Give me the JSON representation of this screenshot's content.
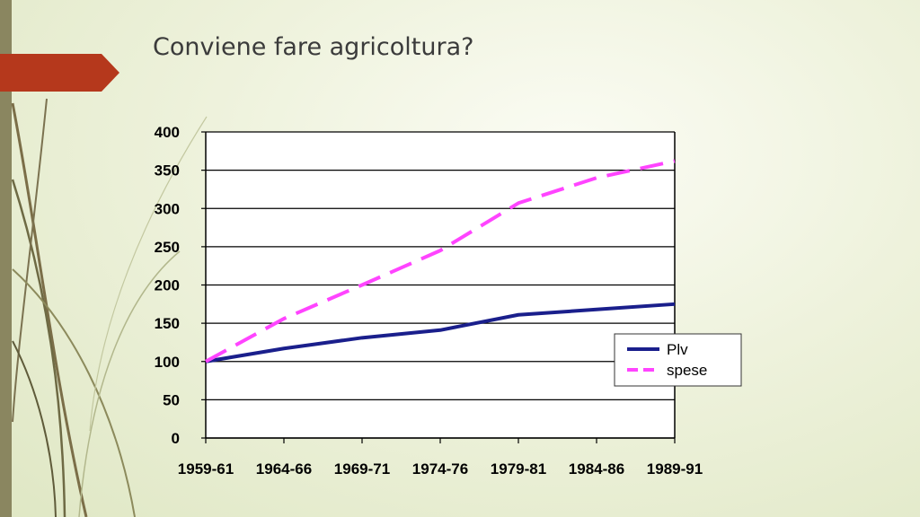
{
  "slide": {
    "title": "Conviene fare agricoltura?"
  },
  "colors": {
    "accent_arrow": "#b5381c",
    "side_bar": "#8a8660",
    "series_plv": "#1a1f8c",
    "series_spese": "#ff44ff"
  },
  "chart_data": {
    "type": "line",
    "x": [
      "1959-61",
      "1964-66",
      "1969-71",
      "1974-76",
      "1979-81",
      "1984-86",
      "1989-91"
    ],
    "series": [
      {
        "name": "Plv",
        "values": [
          100,
          117,
          131,
          141,
          161,
          168,
          175
        ],
        "style": "solid"
      },
      {
        "name": "spese",
        "values": [
          100,
          156,
          200,
          245,
          307,
          340,
          362
        ],
        "style": "dashed"
      }
    ],
    "ylim": [
      0,
      400
    ],
    "yticks": [
      0,
      50,
      100,
      150,
      200,
      250,
      300,
      350,
      400
    ],
    "grid": "horizontal",
    "legend_position": "lower-right"
  }
}
